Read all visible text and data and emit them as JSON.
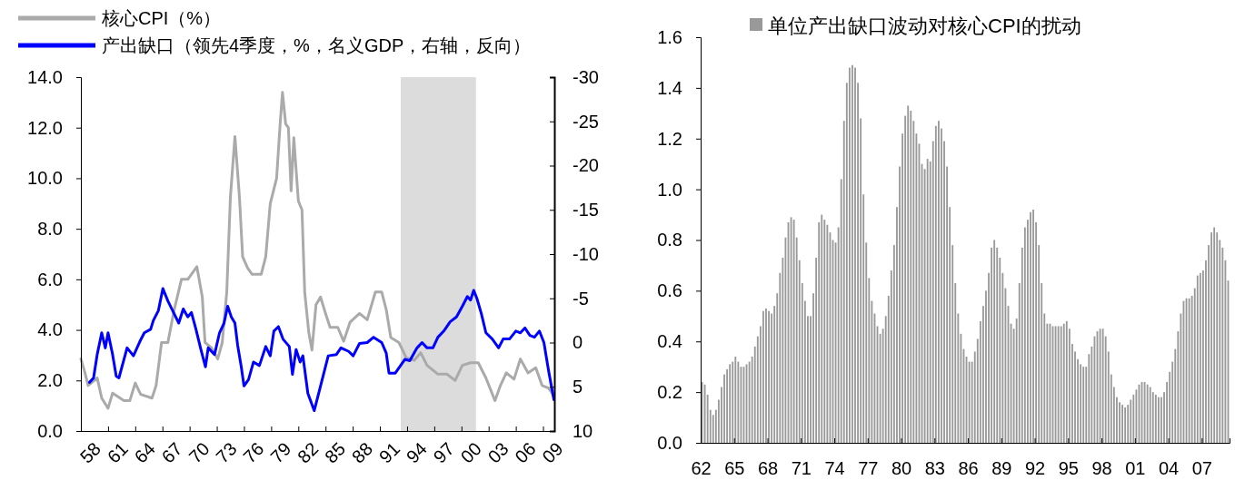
{
  "chart_data": [
    {
      "type": "line",
      "legend": "top",
      "xlim": [
        1958,
        2010.25
      ],
      "xticks": [
        {
          "value": 1958,
          "label": "58"
        },
        {
          "value": 1961,
          "label": "61"
        },
        {
          "value": 1964,
          "label": "64"
        },
        {
          "value": 1967,
          "label": "67"
        },
        {
          "value": 1970,
          "label": "70"
        },
        {
          "value": 1973,
          "label": "73"
        },
        {
          "value": 1976,
          "label": "76"
        },
        {
          "value": 1979,
          "label": "79"
        },
        {
          "value": 1982,
          "label": "82"
        },
        {
          "value": 1985,
          "label": "85"
        },
        {
          "value": 1988,
          "label": "88"
        },
        {
          "value": 1991,
          "label": "91"
        },
        {
          "value": 1994,
          "label": "94"
        },
        {
          "value": 1997,
          "label": "97"
        },
        {
          "value": 2000,
          "label": "00"
        },
        {
          "value": 2003,
          "label": "03"
        },
        {
          "value": 2006,
          "label": "06"
        },
        {
          "value": 2009,
          "label": "09"
        }
      ],
      "ylim": [
        0,
        14
      ],
      "yticks": [
        {
          "value": 0,
          "label": "0.0"
        },
        {
          "value": 2,
          "label": "2.0"
        },
        {
          "value": 4,
          "label": "4.0"
        },
        {
          "value": 6,
          "label": "6.0"
        },
        {
          "value": 8,
          "label": "8.0"
        },
        {
          "value": 10,
          "label": "10.0"
        },
        {
          "value": 12,
          "label": "12.0"
        },
        {
          "value": 14,
          "label": "14.0"
        }
      ],
      "y2lim": [
        10,
        -30
      ],
      "y2ticks": [
        10,
        5,
        0,
        -5,
        -10,
        -15,
        -20,
        -25,
        -30
      ],
      "bands": [
        {
          "axis": "x",
          "from": 1993.3,
          "to": 2001.6,
          "color": "#dcdcdc"
        }
      ],
      "series": [
        {
          "name": "核心CPI（%）",
          "color": "#aaaaaa",
          "x": [
            1958.0,
            1958.45,
            1958.8,
            1959.8,
            1960.3,
            1961.0,
            1961.5,
            1962.75,
            1963.4,
            1964.0,
            1964.6,
            1965.85,
            1966.3,
            1966.9,
            1967.6,
            1968.3,
            1969.1,
            1969.8,
            1970.8,
            1971.4,
            1971.7,
            1972.4,
            1973.1,
            1973.6,
            1974.1,
            1974.5,
            1975.0,
            1975.5,
            1975.85,
            1976.4,
            1976.9,
            1977.9,
            1978.4,
            1978.9,
            1979.6,
            1980.0,
            1980.25,
            1980.6,
            1980.9,
            1981.2,
            1981.5,
            1982.0,
            1982.4,
            1982.7,
            1983.15,
            1983.5,
            1983.95,
            1984.45,
            1985.0,
            1985.5,
            1986.35,
            1987.0,
            1987.7,
            1988.75,
            1989.6,
            1990.5,
            1991.2,
            1991.7,
            1992.2,
            1993.1,
            1993.9,
            1994.8,
            1995.5,
            1996.2,
            1997.4,
            1998.4,
            1999.3,
            2000.1,
            2001.0,
            2001.85,
            2002.7,
            2003.7,
            2004.3,
            2004.95,
            2005.8,
            2006.5,
            2007.35,
            2008.2,
            2008.9,
            2009.6,
            2010.1
          ],
          "values": [
            2.86,
            2.3,
            1.8,
            2.1,
            1.3,
            0.9,
            1.5,
            1.2,
            1.2,
            1.9,
            1.45,
            1.3,
            1.8,
            3.5,
            3.5,
            4.8,
            6.0,
            6.0,
            6.5,
            5.3,
            3.5,
            3.3,
            2.85,
            3.5,
            5.5,
            9.25,
            11.65,
            9.25,
            6.9,
            6.45,
            6.2,
            6.2,
            6.9,
            9.0,
            10.0,
            12.2,
            13.4,
            12.15,
            12.0,
            9.5,
            11.6,
            9.1,
            8.75,
            5.5,
            3.9,
            3.2,
            5.0,
            5.3,
            4.65,
            4.1,
            4.1,
            3.55,
            4.3,
            4.65,
            4.4,
            5.5,
            5.5,
            4.8,
            3.7,
            3.5,
            2.9,
            2.8,
            3.1,
            2.6,
            2.25,
            2.25,
            2.0,
            2.6,
            2.7,
            2.7,
            2.1,
            1.2,
            1.8,
            2.3,
            2.05,
            2.85,
            2.3,
            2.5,
            1.8,
            1.7,
            1.45
          ]
        },
        {
          "name": "产出缺口（领先4季度，%，名义GDP，右轴，反向）",
          "color": "#0000ff",
          "axis": "y2",
          "x": [
            1958.95,
            1959.4,
            1959.8,
            1960.3,
            1960.7,
            1961.0,
            1961.5,
            1961.9,
            1962.2,
            1963.1,
            1963.8,
            1964.5,
            1965.0,
            1965.7,
            1966.0,
            1966.55,
            1967.05,
            1967.6,
            1968.3,
            1968.8,
            1969.3,
            1969.8,
            1970.2,
            1970.7,
            1971.2,
            1971.75,
            1972.05,
            1972.75,
            1973.3,
            1973.8,
            1974.2,
            1974.6,
            1975.0,
            1975.3,
            1975.7,
            1976.0,
            1976.5,
            1977.05,
            1977.7,
            1978.4,
            1978.9,
            1979.3,
            1979.8,
            1980.3,
            1981.0,
            1981.35,
            1981.75,
            1982.2,
            1982.5,
            1983.05,
            1983.75,
            1984.45,
            1985.3,
            1986.2,
            1986.7,
            1987.55,
            1988.05,
            1988.75,
            1989.6,
            1990.3,
            1991.2,
            1991.7,
            1992.0,
            1992.7,
            1993.75,
            1994.3,
            1995.1,
            1995.65,
            1996.2,
            1996.85,
            1997.4,
            1998.05,
            1998.75,
            1999.45,
            2000.1,
            2000.65,
            2001.0,
            2001.35,
            2001.7,
            2002.2,
            2002.7,
            2003.4,
            2004.1,
            2004.6,
            2005.3,
            2006.0,
            2006.5,
            2007.0,
            2007.55,
            2008.05,
            2008.6,
            2009.1,
            2009.6,
            2010.2
          ],
          "values": [
            4.5,
            4.0,
            1.35,
            -1.1,
            0.6,
            -1.1,
            1.35,
            3.8,
            4.0,
            0.6,
            1.5,
            -0.1,
            -1.1,
            -1.5,
            -2.5,
            -3.6,
            -6.1,
            -4.7,
            -3.25,
            -2.2,
            -3.8,
            -2.9,
            -3.4,
            -1.5,
            0.6,
            2.75,
            0.6,
            1.35,
            -1.1,
            -2.2,
            -4.1,
            -2.9,
            -2.2,
            0.3,
            2.75,
            4.9,
            4.2,
            2.2,
            2.6,
            0.45,
            1.5,
            -1.3,
            -1.8,
            -0.4,
            0.45,
            3.6,
            0.8,
            2.2,
            1.5,
            5.75,
            7.7,
            4.9,
            1.5,
            1.35,
            0.6,
            1.0,
            1.5,
            0.1,
            0,
            -0.6,
            0,
            1.2,
            3.45,
            3.45,
            1.9,
            2.05,
            0.6,
            0,
            0.6,
            0.6,
            -0.6,
            -1.3,
            -2.35,
            -2.9,
            -4.1,
            -5.2,
            -4.8,
            -5.9,
            -5.0,
            -3.25,
            -1.1,
            -0.4,
            0.6,
            -0.4,
            -0.4,
            -1.3,
            -1.1,
            -1.65,
            -0.8,
            -0.6,
            -1.3,
            0,
            3.1,
            6.45
          ]
        }
      ]
    },
    {
      "type": "bar",
      "legend": "top",
      "xlim": [
        1962,
        2009.5
      ],
      "xticks": [
        {
          "value": 1962,
          "label": "62"
        },
        {
          "value": 1965,
          "label": "65"
        },
        {
          "value": 1968,
          "label": "68"
        },
        {
          "value": 1971,
          "label": "71"
        },
        {
          "value": 1974,
          "label": "74"
        },
        {
          "value": 1977,
          "label": "77"
        },
        {
          "value": 1980,
          "label": "80"
        },
        {
          "value": 1983,
          "label": "83"
        },
        {
          "value": 1986,
          "label": "86"
        },
        {
          "value": 1989,
          "label": "89"
        },
        {
          "value": 1992,
          "label": "92"
        },
        {
          "value": 1995,
          "label": "95"
        },
        {
          "value": 1998,
          "label": "98"
        },
        {
          "value": 2001,
          "label": "01"
        },
        {
          "value": 2004,
          "label": "04"
        },
        {
          "value": 2007,
          "label": "07"
        }
      ],
      "ylim": [
        0,
        1.6
      ],
      "yticks": [
        {
          "value": 0,
          "label": "0.0"
        },
        {
          "value": 0.2,
          "label": "0.2"
        },
        {
          "value": 0.4,
          "label": "0.4"
        },
        {
          "value": 0.6,
          "label": "0.6"
        },
        {
          "value": 0.8,
          "label": "0.8"
        },
        {
          "value": 1.0,
          "label": "1.0"
        },
        {
          "value": 1.2,
          "label": "1.2"
        },
        {
          "value": 1.4,
          "label": "1.4"
        },
        {
          "value": 1.6,
          "label": "1.6"
        }
      ],
      "x": [
        1962,
        1962.25,
        1962.5,
        1962.75,
        1963,
        1963.25,
        1963.5,
        1963.75,
        1964,
        1964.25,
        1964.5,
        1964.75,
        1965,
        1965.25,
        1965.5,
        1965.75,
        1966,
        1966.25,
        1966.5,
        1966.75,
        1967,
        1967.25,
        1967.5,
        1967.75,
        1968,
        1968.25,
        1968.5,
        1968.75,
        1969,
        1969.25,
        1969.5,
        1969.75,
        1970,
        1970.25,
        1970.5,
        1970.75,
        1971,
        1971.25,
        1971.5,
        1971.75,
        1972,
        1972.25,
        1972.5,
        1972.75,
        1973,
        1973.25,
        1973.5,
        1973.75,
        1974,
        1974.25,
        1974.5,
        1974.75,
        1975,
        1975.25,
        1975.5,
        1975.75,
        1976,
        1976.25,
        1976.5,
        1976.75,
        1977,
        1977.25,
        1977.5,
        1977.75,
        1978,
        1978.25,
        1978.5,
        1978.75,
        1979,
        1979.25,
        1979.5,
        1979.75,
        1980,
        1980.25,
        1980.5,
        1980.75,
        1981,
        1981.25,
        1981.5,
        1981.75,
        1982,
        1982.25,
        1982.5,
        1982.75,
        1983,
        1983.25,
        1983.5,
        1983.75,
        1984,
        1984.25,
        1984.5,
        1984.75,
        1985,
        1985.25,
        1985.5,
        1985.75,
        1986,
        1986.25,
        1986.5,
        1986.75,
        1987,
        1987.25,
        1987.5,
        1987.75,
        1988,
        1988.25,
        1988.5,
        1988.75,
        1989,
        1989.25,
        1989.5,
        1989.75,
        1990,
        1990.25,
        1990.5,
        1990.75,
        1991,
        1991.25,
        1991.5,
        1991.75,
        1992,
        1992.25,
        1992.5,
        1992.75,
        1993,
        1993.25,
        1993.5,
        1993.75,
        1994,
        1994.25,
        1994.5,
        1994.75,
        1995,
        1995.25,
        1995.5,
        1995.75,
        1996,
        1996.25,
        1996.5,
        1996.75,
        1997,
        1997.25,
        1997.5,
        1997.75,
        1998,
        1998.25,
        1998.5,
        1998.75,
        1999,
        1999.25,
        1999.5,
        1999.75,
        2000,
        2000.25,
        2000.5,
        2000.75,
        2001,
        2001.25,
        2001.5,
        2001.75,
        2002,
        2002.25,
        2002.5,
        2002.75,
        2003,
        2003.25,
        2003.5,
        2003.75,
        2004,
        2004.25,
        2004.5,
        2004.75,
        2005,
        2005.25,
        2005.5,
        2005.75,
        2006,
        2006.25,
        2006.5,
        2006.75,
        2007,
        2007.25,
        2007.5,
        2007.75,
        2008,
        2008.25,
        2008.5,
        2008.75,
        2009,
        2009.25
      ],
      "series": [
        {
          "name": "单位产出缺口波动对核心CPI的扰动",
          "color": "#999999",
          "values": [
            0.24,
            0.23,
            0.19,
            0.13,
            0.11,
            0.13,
            0.17,
            0.22,
            0.27,
            0.29,
            0.31,
            0.32,
            0.34,
            0.32,
            0.3,
            0.3,
            0.31,
            0.32,
            0.34,
            0.38,
            0.42,
            0.46,
            0.52,
            0.53,
            0.52,
            0.51,
            0.54,
            0.59,
            0.67,
            0.73,
            0.81,
            0.87,
            0.89,
            0.88,
            0.81,
            0.72,
            0.63,
            0.56,
            0.5,
            0.5,
            0.59,
            0.73,
            0.87,
            0.9,
            0.88,
            0.86,
            0.83,
            0.8,
            0.79,
            0.85,
            1.04,
            1.27,
            1.42,
            1.48,
            1.49,
            1.48,
            1.42,
            1.28,
            0.98,
            0.79,
            0.65,
            0.56,
            0.51,
            0.46,
            0.43,
            0.45,
            0.5,
            0.58,
            0.68,
            0.78,
            0.93,
            1.09,
            1.22,
            1.29,
            1.33,
            1.31,
            1.27,
            1.22,
            1.18,
            1.1,
            1.08,
            1.12,
            1.11,
            1.19,
            1.25,
            1.27,
            1.24,
            1.19,
            1.09,
            0.93,
            0.78,
            0.63,
            0.51,
            0.43,
            0.37,
            0.34,
            0.32,
            0.32,
            0.36,
            0.41,
            0.48,
            0.54,
            0.6,
            0.67,
            0.77,
            0.8,
            0.77,
            0.73,
            0.67,
            0.61,
            0.54,
            0.47,
            0.45,
            0.49,
            0.63,
            0.77,
            0.85,
            0.88,
            0.91,
            0.92,
            0.87,
            0.78,
            0.63,
            0.51,
            0.47,
            0.47,
            0.46,
            0.46,
            0.46,
            0.46,
            0.47,
            0.48,
            0.45,
            0.39,
            0.36,
            0.33,
            0.31,
            0.3,
            0.3,
            0.35,
            0.38,
            0.42,
            0.44,
            0.45,
            0.45,
            0.42,
            0.36,
            0.27,
            0.22,
            0.18,
            0.16,
            0.15,
            0.14,
            0.15,
            0.17,
            0.19,
            0.21,
            0.23,
            0.24,
            0.24,
            0.23,
            0.22,
            0.2,
            0.19,
            0.18,
            0.18,
            0.2,
            0.24,
            0.28,
            0.32,
            0.37,
            0.44,
            0.51,
            0.56,
            0.57,
            0.57,
            0.58,
            0.61,
            0.66,
            0.67,
            0.68,
            0.72,
            0.78,
            0.83,
            0.85,
            0.83,
            0.8,
            0.77,
            0.72,
            0.64
          ]
        }
      ]
    }
  ]
}
